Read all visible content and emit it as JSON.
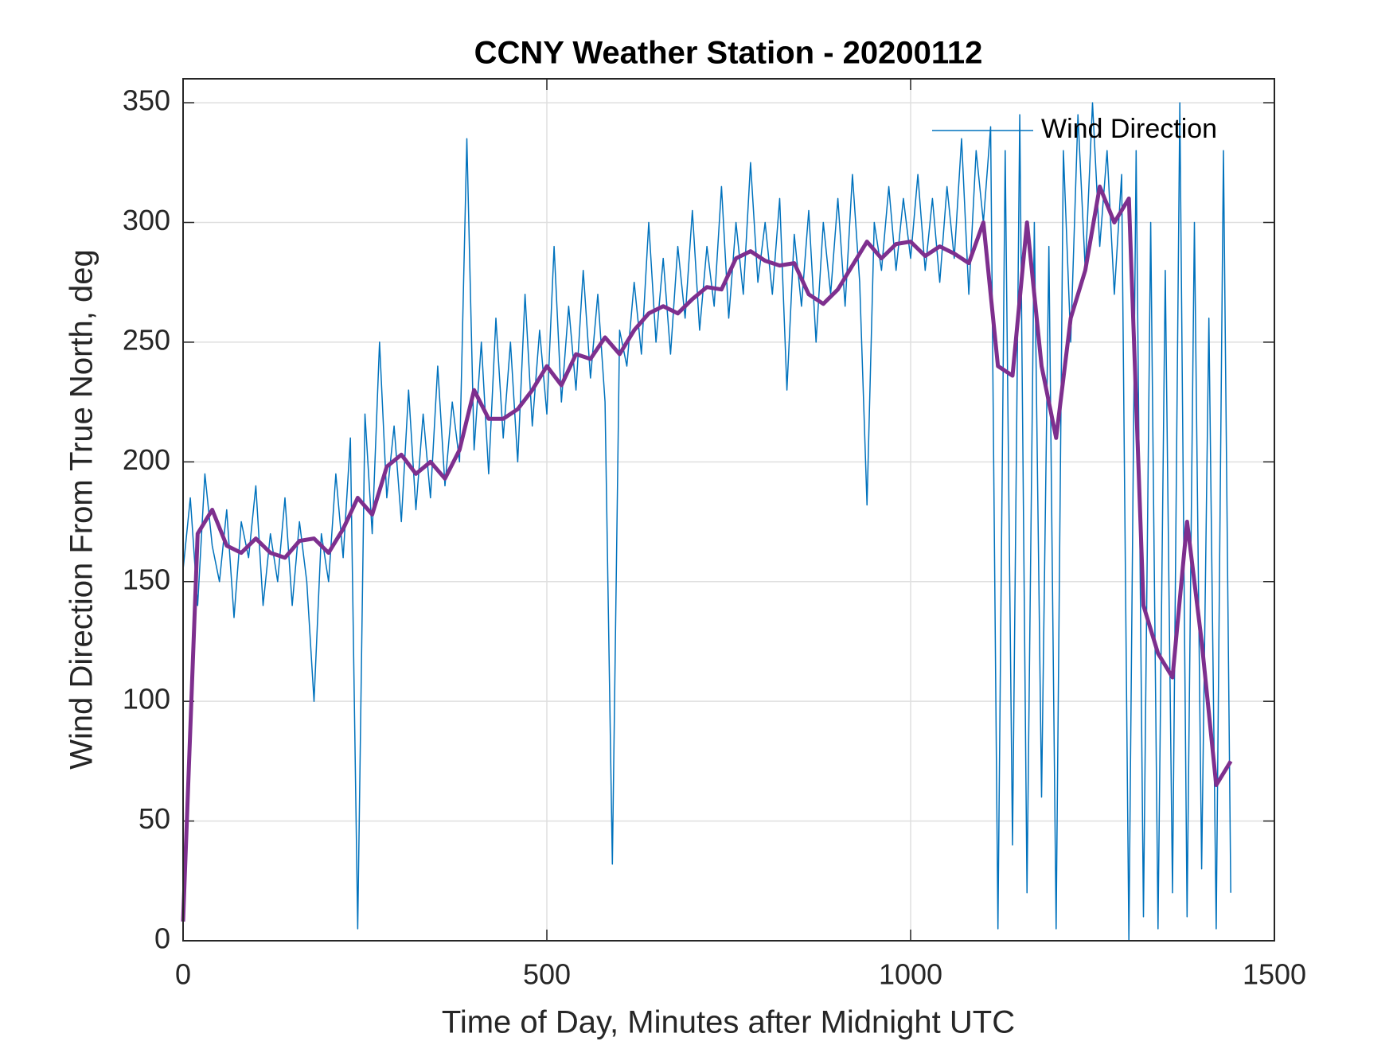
{
  "chart_data": {
    "type": "line",
    "title": "CCNY Weather Station - 20200112",
    "xlabel": "Time of Day, Minutes after Midnight UTC",
    "ylabel": "Wind Direction From True North, deg",
    "xlim": [
      0,
      1500
    ],
    "xticks": [
      0,
      500,
      1000,
      1500
    ],
    "ylim": [
      0,
      360
    ],
    "yticks": [
      0,
      50,
      100,
      150,
      200,
      250,
      300,
      350
    ],
    "grid": true,
    "legend": "northeast",
    "series": [
      {
        "name": "Wind Direction",
        "color": "#0072bd",
        "width": 1.5,
        "x": [
          0,
          10,
          20,
          30,
          40,
          50,
          60,
          70,
          80,
          90,
          100,
          110,
          120,
          130,
          140,
          150,
          160,
          170,
          180,
          190,
          200,
          210,
          220,
          230,
          240,
          250,
          260,
          270,
          280,
          290,
          300,
          310,
          320,
          330,
          340,
          350,
          360,
          370,
          380,
          390,
          400,
          410,
          420,
          430,
          440,
          450,
          460,
          470,
          480,
          490,
          500,
          510,
          520,
          530,
          540,
          550,
          560,
          570,
          580,
          590,
          600,
          610,
          620,
          630,
          640,
          650,
          660,
          670,
          680,
          690,
          700,
          710,
          720,
          730,
          740,
          750,
          760,
          770,
          780,
          790,
          800,
          810,
          820,
          830,
          840,
          850,
          860,
          870,
          880,
          890,
          900,
          910,
          920,
          930,
          940,
          950,
          960,
          970,
          980,
          990,
          1000,
          1010,
          1020,
          1030,
          1040,
          1050,
          1060,
          1070,
          1080,
          1090,
          1100,
          1110,
          1120,
          1130,
          1140,
          1150,
          1160,
          1170,
          1180,
          1190,
          1200,
          1210,
          1220,
          1230,
          1240,
          1250,
          1260,
          1270,
          1280,
          1290,
          1300,
          1310,
          1320,
          1330,
          1340,
          1350,
          1360,
          1370,
          1380,
          1390,
          1400,
          1410,
          1420,
          1430,
          1440
        ],
        "values": [
          155,
          185,
          140,
          195,
          165,
          150,
          180,
          135,
          175,
          160,
          190,
          140,
          170,
          150,
          185,
          140,
          175,
          150,
          100,
          170,
          150,
          195,
          160,
          210,
          5,
          220,
          170,
          250,
          185,
          215,
          175,
          230,
          180,
          220,
          185,
          240,
          190,
          225,
          200,
          335,
          205,
          250,
          195,
          260,
          210,
          250,
          200,
          270,
          215,
          255,
          220,
          290,
          225,
          265,
          230,
          280,
          235,
          270,
          225,
          32,
          255,
          240,
          275,
          245,
          300,
          250,
          285,
          245,
          290,
          260,
          305,
          255,
          290,
          265,
          315,
          260,
          300,
          270,
          325,
          275,
          300,
          270,
          310,
          230,
          295,
          265,
          305,
          250,
          300,
          270,
          310,
          265,
          320,
          275,
          182,
          300,
          280,
          315,
          280,
          310,
          285,
          320,
          280,
          310,
          275,
          315,
          285,
          335,
          270,
          330,
          300,
          340,
          5,
          330,
          40,
          345,
          20,
          300,
          60,
          290,
          5,
          330,
          250,
          345,
          280,
          350,
          290,
          330,
          270,
          320,
          0,
          330,
          10,
          300,
          5,
          280,
          20,
          350,
          10,
          300,
          30,
          260,
          5,
          330,
          20
        ]
      },
      {
        "color": "#7e2f8e",
        "width": 5,
        "x": [
          0,
          20,
          40,
          60,
          80,
          100,
          120,
          140,
          160,
          180,
          200,
          220,
          240,
          260,
          280,
          300,
          320,
          340,
          360,
          380,
          400,
          420,
          440,
          460,
          480,
          500,
          520,
          540,
          560,
          580,
          600,
          620,
          640,
          660,
          680,
          700,
          720,
          740,
          760,
          780,
          800,
          820,
          840,
          860,
          880,
          900,
          920,
          940,
          960,
          980,
          1000,
          1020,
          1040,
          1060,
          1080,
          1100,
          1120,
          1140,
          1160,
          1180,
          1200,
          1220,
          1240,
          1260,
          1280,
          1300,
          1320,
          1340,
          1360,
          1380,
          1400,
          1420,
          1440
        ],
        "values": [
          8,
          170,
          180,
          165,
          162,
          168,
          162,
          160,
          167,
          168,
          162,
          172,
          185,
          178,
          198,
          203,
          195,
          200,
          193,
          205,
          230,
          218,
          218,
          222,
          230,
          240,
          232,
          245,
          243,
          252,
          245,
          255,
          262,
          265,
          262,
          268,
          273,
          272,
          285,
          288,
          284,
          282,
          283,
          270,
          266,
          272,
          282,
          292,
          285,
          291,
          292,
          286,
          290,
          287,
          283,
          300,
          240,
          236,
          300,
          240,
          210,
          260,
          280,
          315,
          300,
          310,
          140,
          120,
          110,
          175,
          125,
          65,
          75
        ]
      }
    ]
  }
}
